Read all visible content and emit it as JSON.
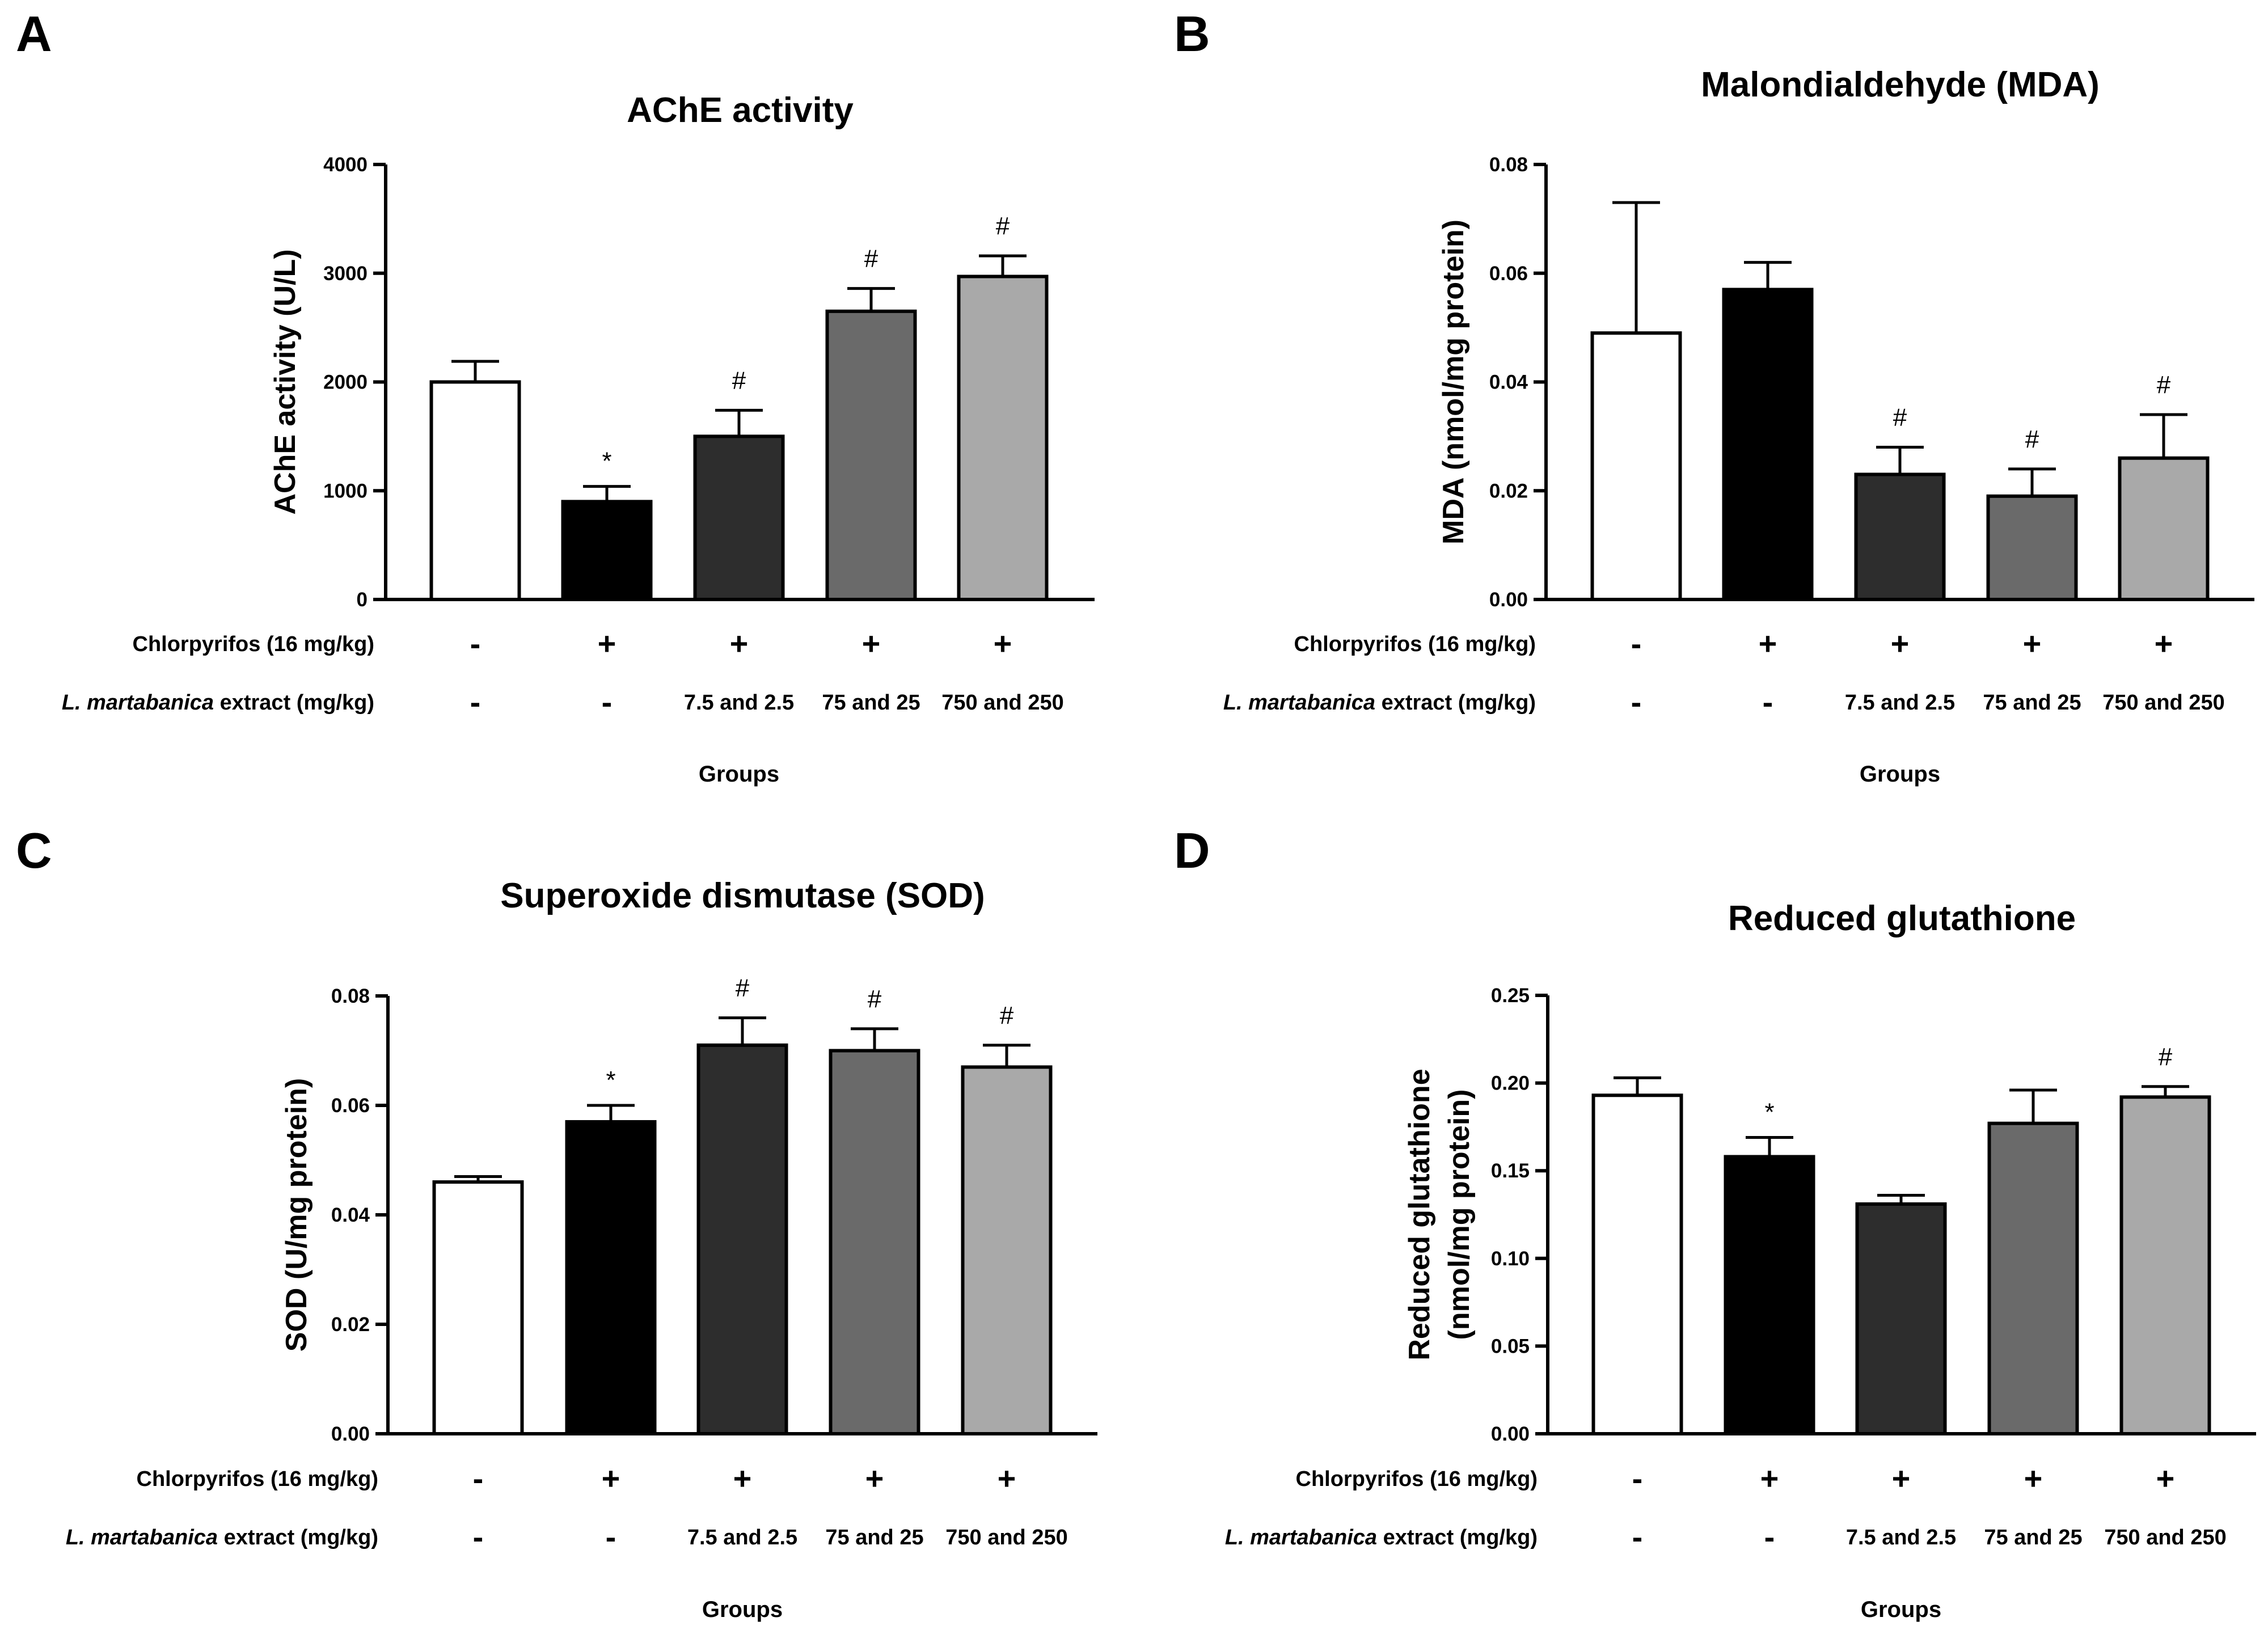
{
  "figure": {
    "row_labels": {
      "chlorpyrifos": "Chlorpyrifos (16 mg/kg)",
      "extract_italic": "L. martabanica",
      "extract_rest": " extract (mg/kg)"
    },
    "chlorpyrifos_signs": [
      "-",
      "+",
      "+",
      "+",
      "+"
    ],
    "extract_doses": [
      "-",
      "-",
      "7.5 and 2.5",
      "75 and 25",
      "750 and 250"
    ],
    "xlabel": "Groups",
    "bar_colors": [
      "#ffffff",
      "#000000",
      "#2d2d2d",
      "#6a6a6a",
      "#a9a9a9"
    ]
  },
  "chart_data": [
    {
      "panel": "A",
      "type": "bar",
      "title": "AChE activity",
      "ylabel": [
        "AChE activity (U/L)"
      ],
      "ylim": [
        0,
        4000
      ],
      "ticks": [
        0,
        1000,
        2000,
        3000,
        4000
      ],
      "tick_labels": [
        "0",
        "1000",
        "2000",
        "3000",
        "4000"
      ],
      "values": [
        2000,
        900,
        1500,
        2650,
        2970
      ],
      "errors": [
        190,
        140,
        240,
        210,
        190
      ],
      "significance": [
        "",
        "*",
        "#",
        "#",
        "#"
      ]
    },
    {
      "panel": "B",
      "type": "bar",
      "title": "Malondialdehyde (MDA)",
      "ylabel": [
        "MDA (nmol/mg protein)"
      ],
      "ylim": [
        0,
        0.08
      ],
      "ticks": [
        0,
        0.02,
        0.04,
        0.06,
        0.08
      ],
      "tick_labels": [
        "0.00",
        "0.02",
        "0.04",
        "0.06",
        "0.08"
      ],
      "values": [
        0.049,
        0.057,
        0.023,
        0.019,
        0.026
      ],
      "errors": [
        0.024,
        0.005,
        0.005,
        0.005,
        0.008
      ],
      "significance": [
        "",
        "",
        "#",
        "#",
        "#"
      ]
    },
    {
      "panel": "C",
      "type": "bar",
      "title": "Superoxide dismutase (SOD)",
      "ylabel": [
        "SOD (U/mg protein)"
      ],
      "ylim": [
        0,
        0.08
      ],
      "ticks": [
        0,
        0.02,
        0.04,
        0.06,
        0.08
      ],
      "tick_labels": [
        "0.00",
        "0.02",
        "0.04",
        "0.06",
        "0.08"
      ],
      "values": [
        0.046,
        0.057,
        0.071,
        0.07,
        0.067
      ],
      "errors": [
        0.001,
        0.003,
        0.005,
        0.004,
        0.004
      ],
      "significance": [
        "",
        "*",
        "#",
        "#",
        "#"
      ]
    },
    {
      "panel": "D",
      "type": "bar",
      "title": "Reduced glutathione",
      "ylabel": [
        "Reduced glutathione",
        "(nmol/mg protein)"
      ],
      "ylim": [
        0,
        0.25
      ],
      "ticks": [
        0,
        0.05,
        0.1,
        0.15,
        0.2,
        0.25
      ],
      "tick_labels": [
        "0.00",
        "0.05",
        "0.10",
        "0.15",
        "0.20",
        "0.25"
      ],
      "values": [
        0.193,
        0.158,
        0.131,
        0.177,
        0.192
      ],
      "errors": [
        0.01,
        0.011,
        0.005,
        0.019,
        0.006
      ],
      "significance": [
        "",
        "*",
        "",
        "",
        "#"
      ]
    }
  ]
}
